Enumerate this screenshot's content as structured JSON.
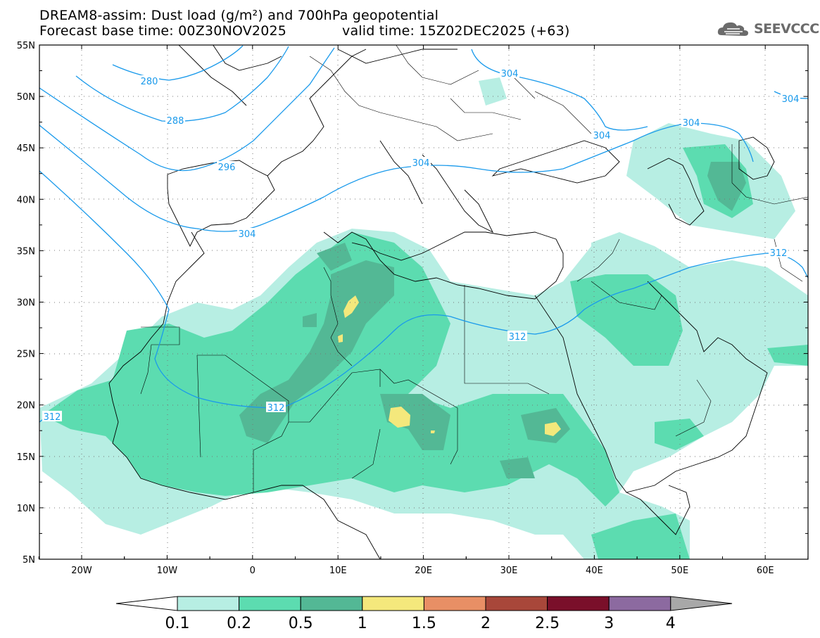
{
  "header": {
    "title_line1": "DREAM8-assim: Dust load (g/m²) and 700hPa geopotential",
    "base_time": "Forecast base time: 00Z30NOV2025",
    "valid_time": "valid time: 15Z02DEC2025 (+63)"
  },
  "logo": {
    "text": "SEEVCCC",
    "icon": "cloud-logo-icon"
  },
  "map": {
    "lat_labels": [
      "55N",
      "50N",
      "45N",
      "40N",
      "35N",
      "30N",
      "25N",
      "20N",
      "15N",
      "10N",
      "5N"
    ],
    "lon_labels": [
      "20W",
      "10W",
      "0",
      "10E",
      "20E",
      "30E",
      "40E",
      "50E",
      "60E"
    ],
    "geopotential_contours": [
      "280",
      "288",
      "296",
      "304",
      "304",
      "304",
      "304",
      "304",
      "312",
      "312",
      "312"
    ],
    "dust_colors": {
      "0.1": "#b7eee3",
      "0.2": "#5cdcb0",
      "0.5": "#53b895",
      "1": "#f4e87c"
    }
  },
  "colorbar": {
    "labels": [
      "0.1",
      "0.2",
      "0.5",
      "1",
      "1.5",
      "2",
      "2.5",
      "3",
      "4"
    ],
    "colors": [
      "#b7eee3",
      "#5cdcb0",
      "#53b895",
      "#f4e87c",
      "#e88f65",
      "#a8473a",
      "#7a0f2a",
      "#8c6aa0"
    ]
  }
}
